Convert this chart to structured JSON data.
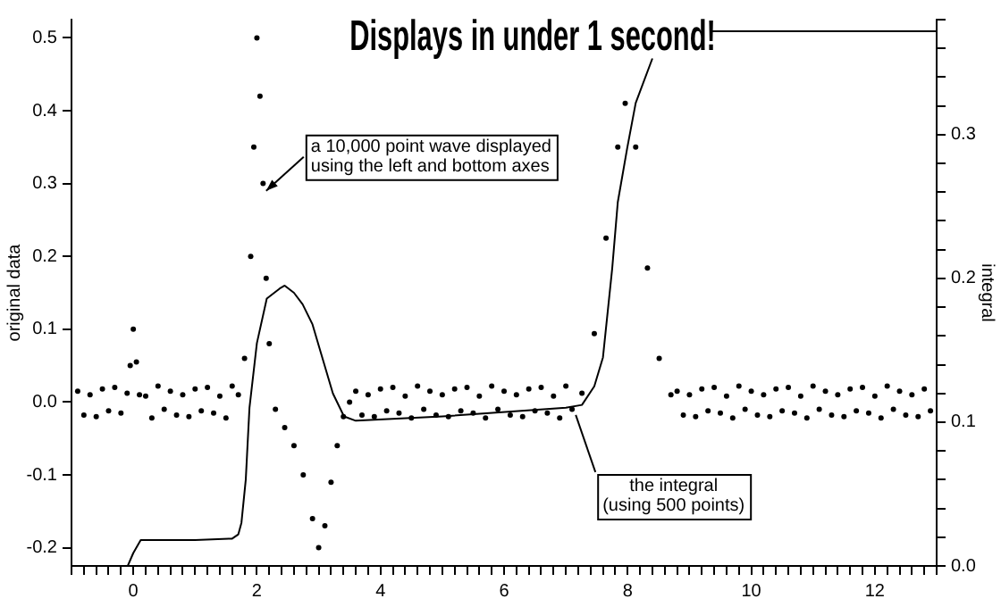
{
  "chart_data": {
    "type": "scatter",
    "title": "Displays in under 1 second!",
    "ylabel": "original data",
    "y2label": "integral",
    "xlim": [
      -1,
      13
    ],
    "xticks": [
      {
        "value": -1,
        "label": null
      },
      {
        "value": -0.8,
        "label": null
      },
      {
        "value": -0.6,
        "label": null
      },
      {
        "value": -0.4,
        "label": null
      },
      {
        "value": -0.2,
        "label": null
      },
      0,
      {
        "value": 0.2,
        "label": null
      },
      {
        "value": 0.4,
        "label": null
      },
      {
        "value": 0.6,
        "label": null
      },
      {
        "value": 0.8,
        "label": null
      },
      {
        "value": 1,
        "label": null
      },
      {
        "value": 1.2,
        "label": null
      },
      {
        "value": 1.4,
        "label": null
      },
      {
        "value": 1.6,
        "label": null
      },
      {
        "value": 1.8,
        "label": null
      },
      2,
      {
        "value": 2.2,
        "label": null
      },
      {
        "value": 2.4,
        "label": null
      },
      {
        "value": 2.6,
        "label": null
      },
      {
        "value": 2.8,
        "label": null
      },
      {
        "value": 3,
        "label": null
      },
      {
        "value": 3.2,
        "label": null
      },
      {
        "value": 3.4,
        "label": null
      },
      {
        "value": 3.6,
        "label": null
      },
      {
        "value": 3.8,
        "label": null
      },
      4,
      {
        "value": 4.2,
        "label": null
      },
      {
        "value": 4.4,
        "label": null
      },
      {
        "value": 4.6,
        "label": null
      },
      {
        "value": 4.8,
        "label": null
      },
      {
        "value": 5,
        "label": null
      },
      {
        "value": 5.2,
        "label": null
      },
      {
        "value": 5.4,
        "label": null
      },
      {
        "value": 5.6,
        "label": null
      },
      {
        "value": 5.8,
        "label": null
      },
      6,
      {
        "value": 6.2,
        "label": null
      },
      {
        "value": 6.4,
        "label": null
      },
      {
        "value": 6.6,
        "label": null
      },
      {
        "value": 6.8,
        "label": null
      },
      {
        "value": 7,
        "label": null
      },
      {
        "value": 7.2,
        "label": null
      },
      {
        "value": 7.4,
        "label": null
      },
      {
        "value": 7.6,
        "label": null
      },
      {
        "value": 7.8,
        "label": null
      },
      8,
      {
        "value": 8.2,
        "label": null
      },
      {
        "value": 8.4,
        "label": null
      },
      {
        "value": 8.6,
        "label": null
      },
      {
        "value": 8.8,
        "label": null
      },
      {
        "value": 9,
        "label": null
      },
      {
        "value": 9.2,
        "label": null
      },
      {
        "value": 9.4,
        "label": null
      },
      {
        "value": 9.6,
        "label": null
      },
      {
        "value": 9.8,
        "label": null
      },
      10,
      {
        "value": 10.2,
        "label": null
      },
      {
        "value": 10.4,
        "label": null
      },
      {
        "value": 10.6,
        "label": null
      },
      {
        "value": 10.8,
        "label": null
      },
      {
        "value": 11,
        "label": null
      },
      {
        "value": 11.2,
        "label": null
      },
      {
        "value": 11.4,
        "label": null
      },
      {
        "value": 11.6,
        "label": null
      },
      {
        "value": 11.8,
        "label": null
      },
      12,
      {
        "value": 12.2,
        "label": null
      },
      {
        "value": 12.4,
        "label": null
      },
      {
        "value": 12.6,
        "label": null
      },
      {
        "value": 12.8,
        "label": null
      },
      {
        "value": 13,
        "label": null
      }
    ],
    "ylim": [
      -0.225,
      0.525
    ],
    "yticks": [
      -0.2,
      -0.1,
      {
        "value": 0,
        "label": "0.0"
      },
      0.1,
      0.2,
      0.3,
      0.4,
      0.5
    ],
    "y2lim": [
      0,
      0.38
    ],
    "y2ticks": [
      {
        "value": 0,
        "label": "0.0"
      },
      {
        "value": 0.02,
        "label": null
      },
      {
        "value": 0.04,
        "label": null
      },
      {
        "value": 0.06,
        "label": null
      },
      {
        "value": 0.08,
        "label": null
      },
      0.1,
      {
        "value": 0.12,
        "label": null
      },
      {
        "value": 0.14,
        "label": null
      },
      {
        "value": 0.16,
        "label": null
      },
      {
        "value": 0.18,
        "label": null
      },
      0.2,
      {
        "value": 0.22,
        "label": null
      },
      {
        "value": 0.24,
        "label": null
      },
      {
        "value": 0.26,
        "label": null
      },
      {
        "value": 0.28,
        "label": null
      },
      0.3,
      {
        "value": 0.32,
        "label": null
      },
      {
        "value": 0.34,
        "label": null
      },
      {
        "value": 0.36,
        "label": null
      },
      {
        "value": 0.38,
        "label": null
      }
    ],
    "annotations": [
      {
        "text": "a 10,000 point wave displayed\nusing the left and bottom axes",
        "x": 2.15,
        "y": 0.29
      },
      {
        "text": "the integral\n(using 500 points)",
        "x": 7.16,
        "y": -0.008
      }
    ],
    "series": [
      {
        "marker": "circle",
        "color": "#000000",
        "x": [
          -0.9,
          -0.8,
          -0.7,
          -0.6,
          -0.5,
          -0.4,
          -0.3,
          -0.2,
          -0.1,
          -0.05,
          0,
          0.05,
          0.1,
          0.2,
          0.3,
          0.4,
          0.5,
          0.6,
          0.7,
          0.8,
          0.9,
          1,
          1.1,
          1.2,
          1.3,
          1.4,
          1.5,
          1.6,
          1.7,
          1.8,
          1.9,
          1.95,
          2,
          2.05,
          2.1,
          2.15,
          2.2,
          2.3,
          2.45,
          2.6,
          2.75,
          2.9,
          3,
          3.1,
          3.2,
          3.3,
          3.4,
          3.5,
          3.6,
          3.7,
          3.8,
          3.9,
          4,
          4.1,
          4.2,
          4.3,
          4.4,
          4.5,
          4.6,
          4.7,
          4.8,
          4.9,
          5,
          5.1,
          5.2,
          5.3,
          5.4,
          5.5,
          5.6,
          5.7,
          5.8,
          5.9,
          6,
          6.1,
          6.2,
          6.3,
          6.4,
          6.5,
          6.6,
          6.7,
          6.8,
          6.9,
          7,
          7.1,
          7.26,
          7.46,
          7.65,
          7.84,
          7.96,
          8.13,
          8.32,
          8.51,
          8.7,
          8.8,
          8.9,
          9,
          9.1,
          9.2,
          9.3,
          9.4,
          9.5,
          9.6,
          9.7,
          9.8,
          9.9,
          10,
          10.1,
          10.2,
          10.3,
          10.4,
          10.5,
          10.6,
          10.7,
          10.8,
          10.9,
          11,
          11.1,
          11.2,
          11.3,
          11.4,
          11.5,
          11.6,
          11.7,
          11.8,
          11.9,
          12,
          12.1,
          12.2,
          12.3,
          12.4,
          12.5,
          12.6,
          12.7,
          12.8,
          12.9
        ],
        "values": [
          0.015,
          -0.018,
          0.01,
          -0.02,
          0.018,
          -0.012,
          0.02,
          -0.015,
          0.012,
          0.05,
          0.1,
          0.055,
          0.01,
          0.008,
          -0.022,
          0.022,
          -0.01,
          0.015,
          -0.018,
          0.01,
          -0.02,
          0.018,
          -0.012,
          0.02,
          -0.015,
          0.008,
          -0.022,
          0.022,
          0.01,
          0.06,
          0.2,
          0.35,
          0.5,
          0.42,
          0.3,
          0.17,
          0.08,
          -0.01,
          -0.035,
          -0.06,
          -0.1,
          -0.16,
          -0.2,
          -0.17,
          -0.11,
          -0.06,
          -0.02,
          0,
          0.015,
          -0.018,
          0.01,
          -0.02,
          0.018,
          -0.012,
          0.02,
          -0.015,
          0.008,
          -0.022,
          0.022,
          -0.01,
          0.015,
          -0.018,
          0.01,
          -0.02,
          0.018,
          -0.012,
          0.02,
          -0.015,
          0.008,
          -0.022,
          0.022,
          -0.01,
          0.015,
          -0.018,
          0.01,
          -0.02,
          0.018,
          -0.012,
          0.02,
          -0.015,
          0.008,
          -0.022,
          0.022,
          -0.01,
          0.012,
          0.094,
          0.225,
          0.35,
          0.41,
          0.35,
          0.184,
          0.06,
          0.01,
          0.015,
          -0.018,
          0.01,
          -0.02,
          0.018,
          -0.012,
          0.02,
          -0.015,
          0.008,
          -0.022,
          0.022,
          -0.01,
          0.015,
          -0.018,
          0.01,
          -0.02,
          0.018,
          -0.012,
          0.02,
          -0.015,
          0.008,
          -0.022,
          0.022,
          -0.01,
          0.015,
          -0.018,
          0.01,
          -0.02,
          0.018,
          -0.012,
          0.02,
          -0.015,
          0.008,
          -0.022,
          0.022,
          -0.01,
          0.015,
          -0.018,
          0.01,
          -0.02,
          0.018,
          -0.012
        ]
      },
      {
        "type": "line",
        "axis": "y2",
        "marker": "none",
        "line_style": "solid",
        "color": "#000000",
        "x": [
          -0.09,
          0,
          0.12,
          1,
          1.6,
          1.7,
          1.75,
          1.82,
          1.88,
          2,
          2.16,
          2.37,
          2.45,
          2.6,
          2.74,
          2.9,
          3.03,
          3.23,
          3.41,
          3.6,
          5,
          7,
          7.26,
          7.46,
          7.6,
          7.75,
          7.84,
          7.99,
          8.13,
          8.4,
          8.9,
          9.35,
          13
        ],
        "values": [
          0,
          0.009,
          0.018,
          0.018,
          0.019,
          0.022,
          0.03,
          0.06,
          0.11,
          0.155,
          0.186,
          0.193,
          0.195,
          0.19,
          0.182,
          0.168,
          0.149,
          0.12,
          0.104,
          0.101,
          0.104,
          0.11,
          0.112,
          0.125,
          0.145,
          0.207,
          0.253,
          0.29,
          0.322,
          0.353,
          null,
          0.372,
          0.372
        ]
      }
    ]
  }
}
